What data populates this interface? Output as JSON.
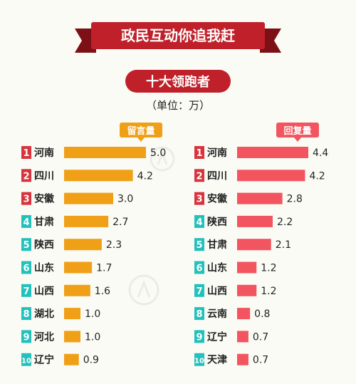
{
  "header": {
    "banner_title": "政民互动你追我赶",
    "subtitle": "十大领跑者",
    "unit_note": "（单位：万）"
  },
  "colors": {
    "banner_red": "#c0202a",
    "banner_dark": "#7d1017",
    "messages_bar": "#f0a017",
    "replies_bar": "#f2555f",
    "rank_1_3": "#d8343d",
    "rank_4_10": "#23c0bc",
    "background": "#fbfbf5"
  },
  "watermark": {
    "icon": "people-logo-icon"
  },
  "chart_data": [
    {
      "type": "bar",
      "orientation": "horizontal",
      "title": "留言量",
      "unit": "万",
      "ranks": [
        "1",
        "2",
        "3",
        "4",
        "5",
        "6",
        "7",
        "8",
        "9",
        "10"
      ],
      "categories": [
        "河南",
        "四川",
        "安徽",
        "甘肃",
        "陕西",
        "山东",
        "山西",
        "湖北",
        "河北",
        "辽宁"
      ],
      "values": [
        5.0,
        4.2,
        3.0,
        2.7,
        2.3,
        1.7,
        1.6,
        1.0,
        1.0,
        0.9
      ],
      "value_labels": [
        "5.0",
        "4.2",
        "3.0",
        "2.7",
        "2.3",
        "1.7",
        "1.6",
        "1.0",
        "1.0",
        "0.9"
      ],
      "xlim": [
        0,
        5.0
      ]
    },
    {
      "type": "bar",
      "orientation": "horizontal",
      "title": "回复量",
      "unit": "万",
      "ranks": [
        "1",
        "2",
        "3",
        "4",
        "5",
        "6",
        "7",
        "8",
        "9",
        "10"
      ],
      "categories": [
        "河南",
        "四川",
        "安徽",
        "陕西",
        "甘肃",
        "山东",
        "山西",
        "云南",
        "辽宁",
        "天津"
      ],
      "values": [
        4.4,
        4.2,
        2.8,
        2.2,
        2.1,
        1.2,
        1.2,
        0.8,
        0.7,
        0.7
      ],
      "value_labels": [
        "4.4",
        "4.2",
        "2.8",
        "2.2",
        "2.1",
        "1.2",
        "1.2",
        "0.8",
        "0.7",
        "0.7"
      ],
      "xlim": [
        0,
        4.4
      ]
    }
  ]
}
